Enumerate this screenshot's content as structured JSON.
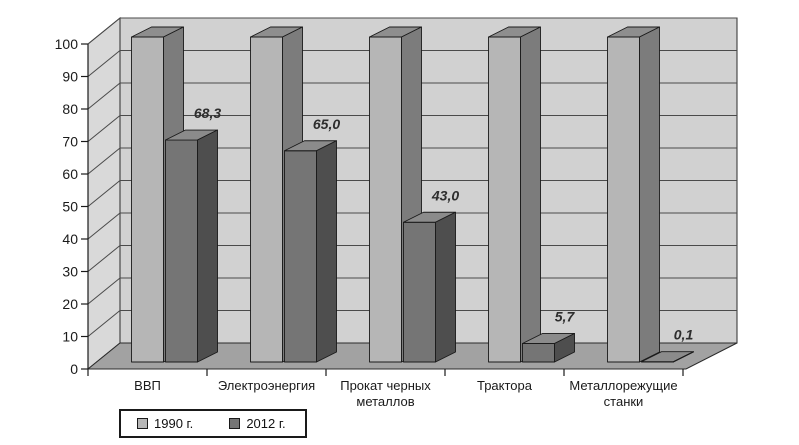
{
  "page": {
    "background": "#ffffff"
  },
  "chart_data": {
    "type": "bar",
    "style": "3d-column",
    "title": "",
    "xlabel": "",
    "ylabel": "",
    "categories": [
      "ВВП",
      "Электроэнергия",
      "Прокат черных металлов",
      "Трактора",
      "Металлорежущие станки"
    ],
    "series": [
      {
        "name": "1990 г.",
        "values": [
          100,
          100,
          100,
          100,
          100
        ],
        "show_labels": false,
        "value_labels": [],
        "colors": {
          "front": "#b6b6b6",
          "top": "#8e8e8e",
          "side": "#7c7c7c"
        }
      },
      {
        "name": "2012 г.",
        "values": [
          68.3,
          65.0,
          43.0,
          5.7,
          0.1
        ],
        "show_labels": true,
        "value_labels": [
          "68,3",
          "65,0",
          "43,0",
          "5,7",
          "0,1"
        ],
        "colors": {
          "front": "#757575",
          "top": "#8b8b8b",
          "side": "#4e4e4e"
        }
      }
    ],
    "ylim": [
      0,
      100
    ],
    "ytick_step": 10,
    "grid": true,
    "legend_position": "bottom-left",
    "walls": {
      "side": "#d9d9d9",
      "back": "#d1d1d1",
      "floor": "#a2a2a2",
      "gridline": "#4a4a4a",
      "edge": "#2b2b2b"
    },
    "axis_text_color": "#1a1a1a",
    "value_label_color": "#2e2e2e"
  }
}
